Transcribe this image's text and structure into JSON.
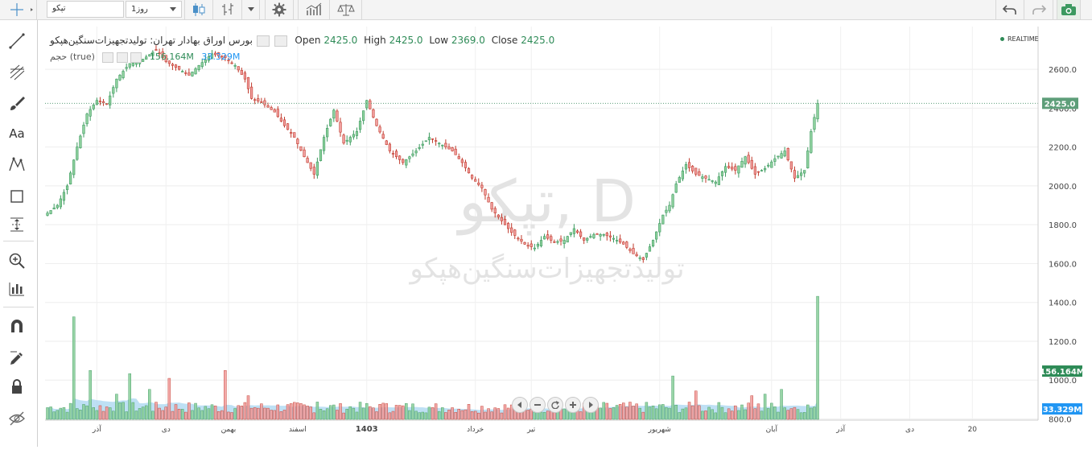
{
  "toolbar": {
    "symbol": "تپکو",
    "interval": "1روز"
  },
  "legend": {
    "title": "بورس اوراق بهادار تهران: تولیدتجهیزات‌سنگین‌هپکو",
    "open_label": "Open",
    "open": "2425.0",
    "high_label": "High",
    "high": "2425.0",
    "low_label": "Low",
    "low": "2369.0",
    "close_label": "Close",
    "close": "2425.0",
    "volume_study": "حجم (true)",
    "volume_value": "156.164M",
    "volume_ma": "33.329M",
    "realtime": "REALTIME"
  },
  "watermark": {
    "symbol": "تپکو, D",
    "name": "تولیدتجهیزات‌سنگین‌هپکو"
  },
  "colors": {
    "up": "#3c9a5f",
    "up_fill": "#8fd19e",
    "down": "#c0392b",
    "down_fill": "#f2a0a0",
    "volume_ma": "#a8d5f0",
    "price_label": "#5d9e79",
    "volume_label": "#2e8b57",
    "ma_label": "#2196f3"
  },
  "chart_data": {
    "type": "candlestick",
    "price_axis_ticks": [
      "2600.0",
      "2400.0",
      "2200.0",
      "2000.0",
      "1800.0",
      "1600.0",
      "1400.0",
      "1200.0",
      "1000.0",
      "800.0"
    ],
    "y_range": [
      800,
      2700
    ],
    "last_price_label": "2425.0",
    "last_price": 2425,
    "volume_label": "156.164M",
    "volume_ma_label": "33.329M",
    "x_ticks": [
      {
        "label": "آذر",
        "idx": 15
      },
      {
        "label": "دی",
        "idx": 36
      },
      {
        "label": "بهمن",
        "idx": 55
      },
      {
        "label": "اسفند",
        "idx": 76
      },
      {
        "label": "1403",
        "idx": 97
      },
      {
        "label": "خرداد",
        "idx": 130
      },
      {
        "label": "تیر",
        "idx": 147
      },
      {
        "label": "شهریور",
        "idx": 186
      },
      {
        "label": "آبان",
        "idx": 220
      },
      {
        "label": "آذر",
        "idx": 241
      },
      {
        "label": "دی",
        "idx": 262
      },
      {
        "label": "20",
        "idx": 281
      }
    ],
    "key_closes": [
      [
        0,
        1860
      ],
      [
        3,
        1900
      ],
      [
        6,
        2000
      ],
      [
        9,
        2200
      ],
      [
        12,
        2370
      ],
      [
        15,
        2440
      ],
      [
        18,
        2420
      ],
      [
        21,
        2550
      ],
      [
        25,
        2630
      ],
      [
        28,
        2640
      ],
      [
        33,
        2700
      ],
      [
        36,
        2640
      ],
      [
        40,
        2600
      ],
      [
        43,
        2570
      ],
      [
        46,
        2620
      ],
      [
        50,
        2680
      ],
      [
        54,
        2660
      ],
      [
        57,
        2620
      ],
      [
        60,
        2550
      ],
      [
        62,
        2450
      ],
      [
        65,
        2430
      ],
      [
        69,
        2380
      ],
      [
        72,
        2310
      ],
      [
        75,
        2250
      ],
      [
        78,
        2150
      ],
      [
        81,
        2060
      ],
      [
        84,
        2250
      ],
      [
        87,
        2390
      ],
      [
        90,
        2220
      ],
      [
        94,
        2280
      ],
      [
        97,
        2440
      ],
      [
        100,
        2310
      ],
      [
        104,
        2180
      ],
      [
        108,
        2120
      ],
      [
        112,
        2180
      ],
      [
        116,
        2250
      ],
      [
        119,
        2220
      ],
      [
        123,
        2180
      ],
      [
        126,
        2120
      ],
      [
        129,
        2040
      ],
      [
        132,
        1990
      ],
      [
        135,
        1880
      ],
      [
        138,
        1820
      ],
      [
        141,
        1760
      ],
      [
        145,
        1700
      ],
      [
        148,
        1680
      ],
      [
        151,
        1740
      ],
      [
        154,
        1710
      ],
      [
        157,
        1720
      ],
      [
        160,
        1780
      ],
      [
        163,
        1720
      ],
      [
        166,
        1750
      ],
      [
        169,
        1750
      ],
      [
        172,
        1730
      ],
      [
        175,
        1700
      ],
      [
        178,
        1650
      ],
      [
        181,
        1620
      ],
      [
        184,
        1720
      ],
      [
        187,
        1850
      ],
      [
        189,
        1900
      ],
      [
        191,
        2010
      ],
      [
        194,
        2110
      ],
      [
        197,
        2060
      ],
      [
        200,
        2040
      ],
      [
        203,
        2020
      ],
      [
        206,
        2100
      ],
      [
        209,
        2080
      ],
      [
        212,
        2150
      ],
      [
        215,
        2060
      ],
      [
        218,
        2090
      ],
      [
        221,
        2140
      ],
      [
        224,
        2180
      ],
      [
        227,
        2040
      ],
      [
        230,
        2080
      ],
      [
        232,
        2280
      ],
      [
        234,
        2425
      ]
    ],
    "volumes_millions_sample": [
      [
        8,
        130
      ],
      [
        13,
        62
      ],
      [
        21,
        32
      ],
      [
        25,
        58
      ],
      [
        31,
        38
      ],
      [
        37,
        52
      ],
      [
        54,
        62
      ],
      [
        61,
        30
      ],
      [
        82,
        22
      ],
      [
        89,
        20
      ],
      [
        103,
        20
      ],
      [
        117,
        15
      ],
      [
        190,
        55
      ],
      [
        197,
        36
      ],
      [
        214,
        30
      ],
      [
        218,
        32
      ],
      [
        223,
        38
      ],
      [
        234,
        156
      ]
    ]
  }
}
